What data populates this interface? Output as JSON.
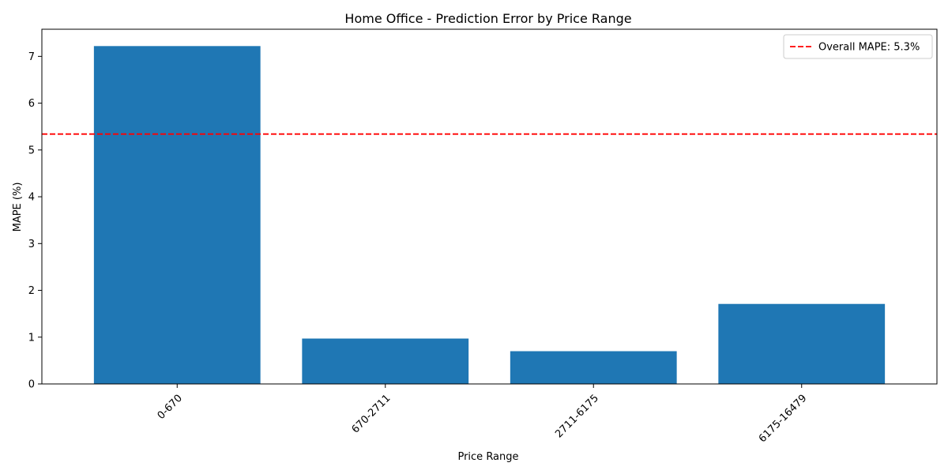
{
  "chart_data": {
    "type": "bar",
    "title": "Home Office - Prediction Error by Price Range",
    "xlabel": "Price Range",
    "ylabel": "MAPE (%)",
    "categories": [
      "0-670",
      "670-2711",
      "2711-6175",
      "6175-16479"
    ],
    "values": [
      7.22,
      0.97,
      0.7,
      1.71
    ],
    "ylim": [
      0,
      7.58
    ],
    "yticks": [
      0,
      1,
      2,
      3,
      4,
      5,
      6,
      7
    ],
    "bar_color": "#1f77b4",
    "reference_line": {
      "value": 5.34,
      "label": "Overall MAPE: 5.3%",
      "color": "#ff0000",
      "style": "dashed"
    },
    "legend_position": "top-right",
    "grid": false
  }
}
